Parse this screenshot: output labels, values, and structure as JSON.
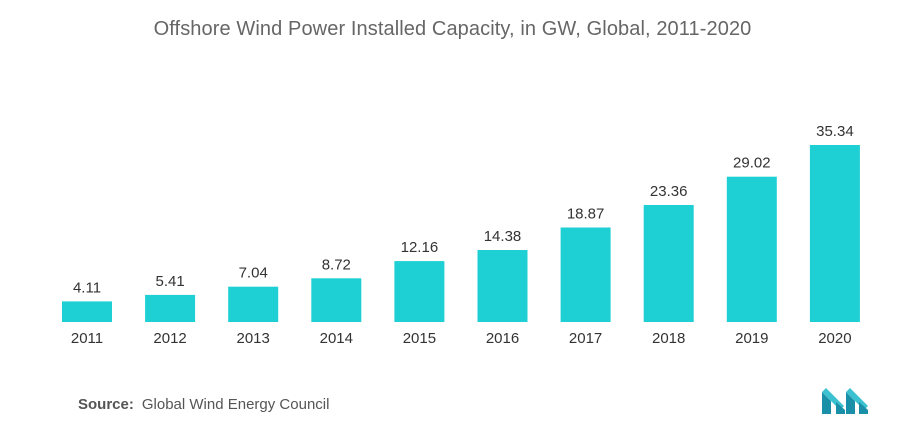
{
  "title": "Offshore Wind Power Installed Capacity, in GW, Global, 2011-2020",
  "source": {
    "label": "Source:",
    "text": "Global Wind Energy Council"
  },
  "logo": {
    "icon": "mordor-intelligence-logo-icon",
    "colors": [
      "#1a8fa8",
      "#3cc1d0"
    ]
  },
  "colors": {
    "bar": "#1ecfd3",
    "text": "#333333",
    "title": "#666666"
  },
  "chart_data": {
    "type": "bar",
    "title": "Offshore Wind Power Installed Capacity, in GW, Global, 2011-2020",
    "categories": [
      "2011",
      "2012",
      "2013",
      "2014",
      "2015",
      "2016",
      "2017",
      "2018",
      "2019",
      "2020"
    ],
    "values": [
      4.11,
      5.41,
      7.04,
      8.72,
      12.16,
      14.38,
      18.87,
      23.36,
      29.02,
      35.34
    ],
    "value_labels": [
      "4.11",
      "5.41",
      "7.04",
      "8.72",
      "12.16",
      "14.38",
      "18.87",
      "23.36",
      "29.02",
      "35.34"
    ],
    "xlabel": "",
    "ylabel": "",
    "ylim": [
      0,
      40
    ],
    "grid": false,
    "legend": "none"
  }
}
